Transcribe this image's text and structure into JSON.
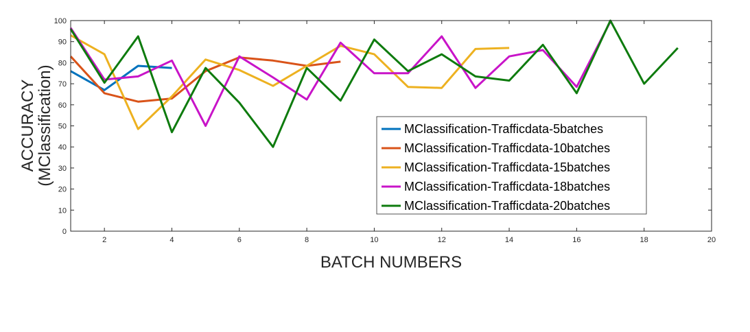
{
  "chart_data": {
    "type": "line",
    "title": "",
    "xlabel": "BATCH NUMBERS",
    "ylabel_lines": [
      "ACCURACY",
      "(MClassification)"
    ],
    "xlim": [
      1,
      20
    ],
    "ylim": [
      0,
      100
    ],
    "xticks": [
      2,
      4,
      6,
      8,
      10,
      12,
      14,
      16,
      18,
      20
    ],
    "yticks": [
      0,
      10,
      20,
      30,
      40,
      50,
      60,
      70,
      80,
      90,
      100
    ],
    "grid": false,
    "legend_position": "center-right",
    "series": [
      {
        "name": "MClassification-Trafficdata-5batches",
        "color": "#0072BD",
        "x": [
          1,
          2,
          3,
          4
        ],
        "y": [
          76,
          67,
          78.5,
          77.5
        ]
      },
      {
        "name": "MClassification-Trafficdata-10batches",
        "color": "#D95319",
        "x": [
          1,
          2,
          3,
          4,
          5,
          6,
          7,
          8,
          9
        ],
        "y": [
          83,
          65.5,
          61.5,
          63,
          76,
          82.5,
          81,
          78.5,
          80.5
        ]
      },
      {
        "name": "MClassification-Trafficdata-15batches",
        "color": "#EDB120",
        "x": [
          1,
          2,
          3,
          4,
          5,
          6,
          7,
          8,
          9,
          10,
          11,
          12,
          13,
          14
        ],
        "y": [
          93,
          84,
          48.5,
          64,
          81.5,
          76.5,
          69,
          78.5,
          88,
          84,
          68.5,
          68,
          86.5,
          87
        ]
      },
      {
        "name": "MClassification-Trafficdata-18batches",
        "color": "#C814C8",
        "x": [
          1,
          2,
          3,
          4,
          5,
          6,
          7,
          8,
          9,
          10,
          11,
          12,
          13,
          14,
          15,
          16,
          17
        ],
        "y": [
          96.5,
          72,
          73.5,
          81,
          50,
          83,
          73,
          62.5,
          89.5,
          75,
          75,
          92.5,
          68,
          83,
          86,
          68.5,
          99.5
        ]
      },
      {
        "name": "MClassification-Trafficdata-20batches",
        "color": "#0E7B0E",
        "x": [
          1,
          2,
          3,
          4,
          5,
          6,
          7,
          8,
          9,
          10,
          11,
          12,
          13,
          14,
          15,
          16,
          17,
          18,
          19
        ],
        "y": [
          96,
          70.5,
          92.5,
          47,
          77.5,
          61,
          40,
          77.5,
          62,
          91,
          76,
          84,
          73.5,
          71.5,
          88.5,
          65.5,
          100,
          70,
          87
        ]
      }
    ]
  }
}
